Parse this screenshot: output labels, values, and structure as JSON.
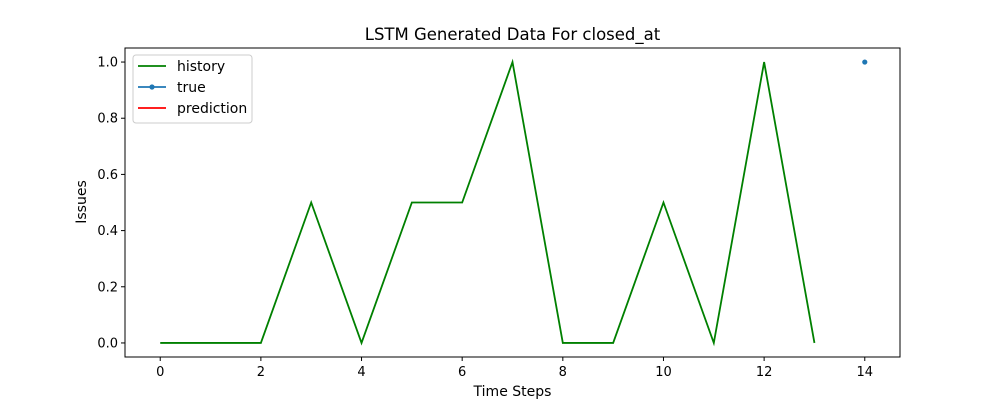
{
  "chart_data": {
    "type": "line",
    "title": "LSTM Generated Data For closed_at",
    "xlabel": "Time Steps",
    "ylabel": "Issues",
    "xlim": [
      -0.7,
      14.7
    ],
    "ylim": [
      -0.05,
      1.05
    ],
    "xticks": [
      0,
      2,
      4,
      6,
      8,
      10,
      12,
      14
    ],
    "yticks": [
      0.0,
      0.2,
      0.4,
      0.6,
      0.8,
      1.0
    ],
    "xtick_labels": [
      "0",
      "2",
      "4",
      "6",
      "8",
      "10",
      "12",
      "14"
    ],
    "ytick_labels": [
      "0.0",
      "0.2",
      "0.4",
      "0.6",
      "0.8",
      "1.0"
    ],
    "legend_position": "top-left",
    "series": [
      {
        "name": "history",
        "color": "#008000",
        "style": "line",
        "x": [
          0,
          1,
          2,
          3,
          4,
          5,
          6,
          7,
          8,
          9,
          10,
          11,
          12,
          13
        ],
        "values": [
          0,
          0,
          0,
          0.5,
          0,
          0.5,
          0.5,
          1,
          0,
          0,
          0.5,
          0,
          1,
          0
        ]
      },
      {
        "name": "true",
        "color": "#1f77b4",
        "style": "marker-line",
        "x": [
          14
        ],
        "values": [
          1
        ]
      },
      {
        "name": "prediction",
        "color": "#ff0000",
        "style": "line",
        "x": [],
        "values": []
      }
    ]
  }
}
